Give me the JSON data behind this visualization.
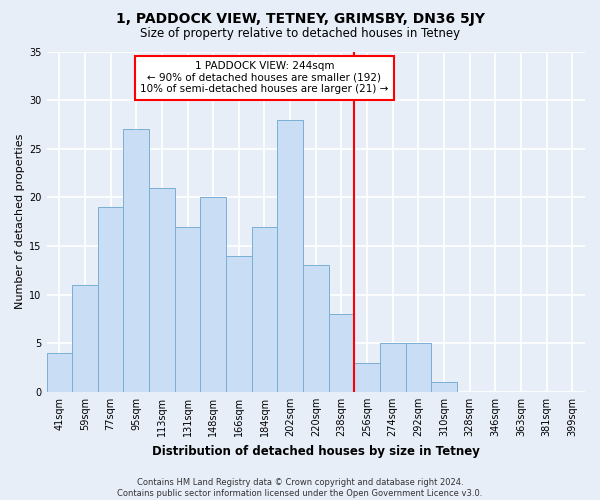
{
  "title": "1, PADDOCK VIEW, TETNEY, GRIMSBY, DN36 5JY",
  "subtitle": "Size of property relative to detached houses in Tetney",
  "xlabel": "Distribution of detached houses by size in Tetney",
  "ylabel": "Number of detached properties",
  "categories": [
    "41sqm",
    "59sqm",
    "77sqm",
    "95sqm",
    "113sqm",
    "131sqm",
    "148sqm",
    "166sqm",
    "184sqm",
    "202sqm",
    "220sqm",
    "238sqm",
    "256sqm",
    "274sqm",
    "292sqm",
    "310sqm",
    "328sqm",
    "346sqm",
    "363sqm",
    "381sqm",
    "399sqm"
  ],
  "values": [
    4,
    11,
    19,
    27,
    21,
    17,
    20,
    14,
    17,
    28,
    13,
    8,
    3,
    5,
    5,
    1,
    0,
    0,
    0,
    0,
    0
  ],
  "bar_color": "#c9ddf5",
  "bar_edge_color": "#7bafd4",
  "background_color": "#e8eef8",
  "grid_color": "#ffffff",
  "vline_x_index": 11.5,
  "vline_color": "red",
  "annotation_text": "1 PADDOCK VIEW: 244sqm\n← 90% of detached houses are smaller (192)\n10% of semi-detached houses are larger (21) →",
  "annotation_box_color": "white",
  "annotation_box_edge_color": "red",
  "ylim": [
    0,
    35
  ],
  "yticks": [
    0,
    5,
    10,
    15,
    20,
    25,
    30,
    35
  ],
  "footer": "Contains HM Land Registry data © Crown copyright and database right 2024.\nContains public sector information licensed under the Open Government Licence v3.0.",
  "title_fontsize": 10,
  "subtitle_fontsize": 8.5,
  "ylabel_fontsize": 8,
  "xlabel_fontsize": 8.5,
  "tick_fontsize": 7,
  "annotation_fontsize": 7.5,
  "footer_fontsize": 6
}
